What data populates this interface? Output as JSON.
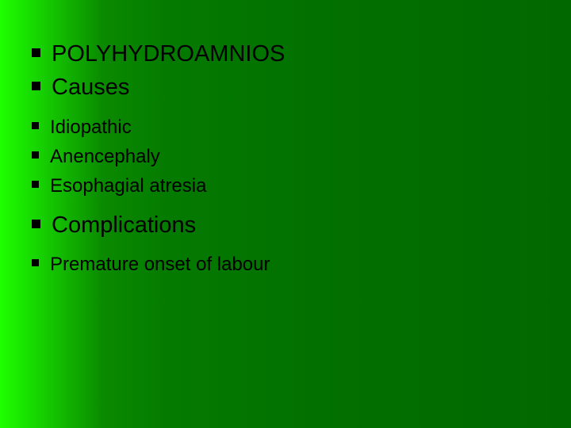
{
  "slide": {
    "background": {
      "gradient_stops": [
        "#1eff00",
        "#0a8a00",
        "#047a00",
        "#027000",
        "#016800"
      ]
    },
    "bullet_color": "#000000",
    "text_color": "#000000",
    "font_large_pt": 29,
    "font_small_pt": 24,
    "items": [
      {
        "text": "POLYHYDROAMNIOS",
        "level": 0
      },
      {
        "text": "Causes",
        "level": 0
      },
      {
        "text": "Idiopathic",
        "level": 1
      },
      {
        "text": "Anencephaly",
        "level": 1
      },
      {
        "text": "Esophagial atresia",
        "level": 1
      },
      {
        "text": "Complications",
        "level": 0
      },
      {
        "text": "Premature onset of labour",
        "level": 1
      }
    ]
  }
}
